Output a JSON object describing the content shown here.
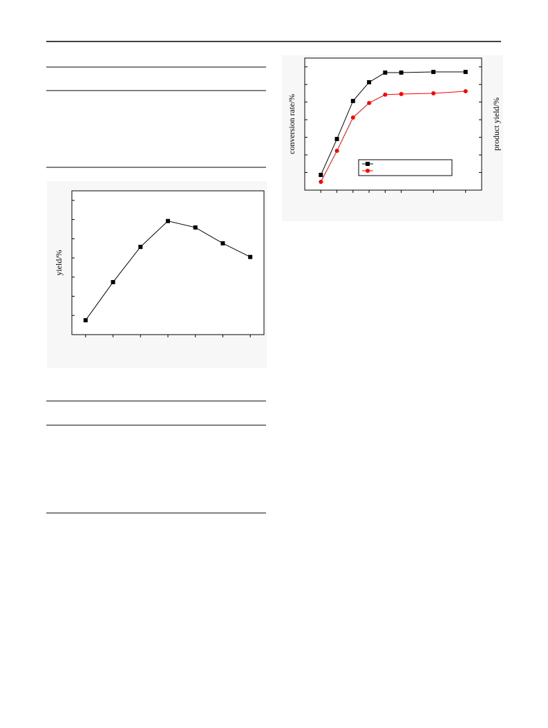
{
  "chart_data": [
    {
      "type": "line",
      "ylabel": "yield/%",
      "categories": [
        null,
        null,
        null,
        null,
        null,
        null,
        null
      ],
      "series": [
        {
          "color": "#000000",
          "marker": "square",
          "values": [
            10,
            36.5,
            61,
            79,
            74.5,
            63.5,
            54
          ]
        }
      ],
      "ylim": [
        0,
        100
      ]
    },
    {
      "type": "line",
      "ylabel": "conversion rate/%",
      "y2label": "product yield/%",
      "x": [
        1,
        2,
        3,
        4,
        5,
        6,
        8,
        10
      ],
      "xlim": [
        0,
        11
      ],
      "series": [
        {
          "color": "#000000",
          "marker": "square",
          "values": [
            11.5,
            38.7,
            67.5,
            81.7,
            89,
            89,
            89.5,
            89.5
          ]
        },
        {
          "color": "#ff0000",
          "marker": "circle",
          "axis": "y2",
          "values": [
            6.3,
            29.8,
            55,
            66,
            72.3,
            72.8,
            73.3,
            74.9
          ]
        }
      ],
      "ylim": [
        0,
        100
      ],
      "y2lim": [
        0,
        100
      ],
      "legend": "lower-right"
    }
  ]
}
